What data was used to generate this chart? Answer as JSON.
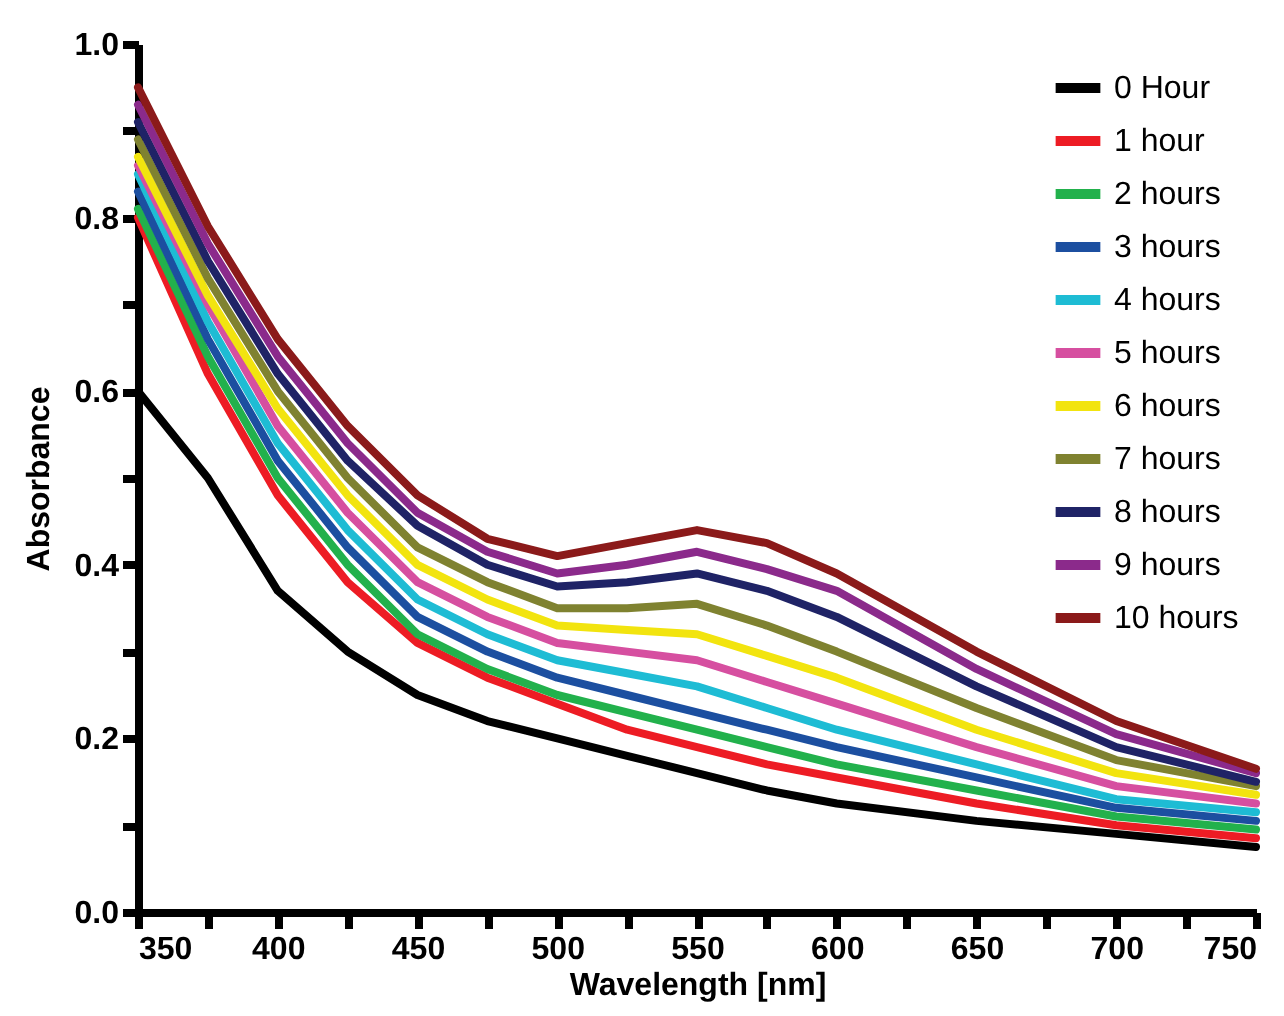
{
  "chart_data": {
    "type": "line",
    "xlabel": "Wavelength [nm]",
    "ylabel": "Absorbance",
    "x": [
      350,
      375,
      400,
      425,
      450,
      475,
      500,
      525,
      550,
      575,
      600,
      650,
      700,
      750
    ],
    "xlim": [
      350,
      750
    ],
    "xticks": [
      350,
      {
        "value": 375,
        "label": null
      },
      400,
      {
        "value": 425,
        "label": null
      },
      450,
      {
        "value": 475,
        "label": null
      },
      500,
      {
        "value": 525,
        "label": null
      },
      550,
      {
        "value": 575,
        "label": null
      },
      600,
      {
        "value": 625,
        "label": null
      },
      650,
      {
        "value": 675,
        "label": null
      },
      700,
      {
        "value": 725,
        "label": null
      },
      750
    ],
    "ylim": [
      0,
      1
    ],
    "yticks": [
      {
        "value": 0,
        "label": "0.0"
      },
      {
        "value": 0.1,
        "label": null
      },
      0.2,
      {
        "value": 0.3,
        "label": null
      },
      0.4,
      {
        "value": 0.5,
        "label": null
      },
      0.6,
      {
        "value": 0.7,
        "label": null
      },
      0.8,
      {
        "value": 0.9,
        "label": null
      },
      {
        "value": 1,
        "label": "1.0"
      }
    ],
    "grid": false,
    "legend": "top right",
    "marker": "none",
    "line_style": "solid",
    "series": [
      {
        "name": "0 Hour",
        "color": "#000000",
        "values": [
          0.6,
          0.5,
          0.37,
          0.3,
          0.25,
          0.22,
          0.2,
          0.18,
          0.16,
          0.14,
          0.125,
          0.105,
          0.09,
          0.075
        ]
      },
      {
        "name": "1 hour",
        "color": "#ed1c24",
        "values": [
          0.8,
          0.62,
          0.48,
          0.38,
          0.31,
          0.27,
          0.24,
          0.21,
          0.19,
          0.17,
          0.155,
          0.125,
          0.1,
          0.085
        ]
      },
      {
        "name": "2 hours",
        "color": "#22b14c",
        "values": [
          0.81,
          0.64,
          0.5,
          0.4,
          0.32,
          0.28,
          0.25,
          0.23,
          0.21,
          0.19,
          0.17,
          0.14,
          0.11,
          0.095
        ]
      },
      {
        "name": "3 hours",
        "color": "#1c4fa0",
        "values": [
          0.83,
          0.66,
          0.52,
          0.42,
          0.34,
          0.3,
          0.27,
          0.25,
          0.23,
          0.21,
          0.19,
          0.155,
          0.12,
          0.105
        ]
      },
      {
        "name": "4 hours",
        "color": "#1ebcd4",
        "values": [
          0.85,
          0.68,
          0.54,
          0.44,
          0.36,
          0.32,
          0.29,
          0.275,
          0.26,
          0.235,
          0.21,
          0.17,
          0.13,
          0.115
        ]
      },
      {
        "name": "5 hours",
        "color": "#d64fa0",
        "values": [
          0.86,
          0.7,
          0.56,
          0.46,
          0.38,
          0.34,
          0.31,
          0.3,
          0.29,
          0.265,
          0.24,
          0.19,
          0.145,
          0.125
        ]
      },
      {
        "name": "6 hours",
        "color": "#f2e40f",
        "values": [
          0.87,
          0.71,
          0.58,
          0.48,
          0.4,
          0.36,
          0.33,
          0.325,
          0.32,
          0.295,
          0.27,
          0.21,
          0.16,
          0.135
        ]
      },
      {
        "name": "7 hours",
        "color": "#7f8230",
        "values": [
          0.89,
          0.73,
          0.6,
          0.5,
          0.42,
          0.38,
          0.35,
          0.35,
          0.355,
          0.33,
          0.3,
          0.235,
          0.175,
          0.145
        ]
      },
      {
        "name": "8 hours",
        "color": "#1f2366",
        "values": [
          0.91,
          0.75,
          0.62,
          0.52,
          0.445,
          0.4,
          0.375,
          0.38,
          0.39,
          0.37,
          0.34,
          0.26,
          0.19,
          0.15
        ]
      },
      {
        "name": "9 hours",
        "color": "#8b2a8b",
        "values": [
          0.93,
          0.77,
          0.64,
          0.54,
          0.46,
          0.415,
          0.39,
          0.4,
          0.415,
          0.395,
          0.37,
          0.28,
          0.205,
          0.16
        ]
      },
      {
        "name": "10 hours",
        "color": "#8b1a1a",
        "values": [
          0.95,
          0.79,
          0.66,
          0.56,
          0.48,
          0.43,
          0.41,
          0.425,
          0.44,
          0.425,
          0.39,
          0.3,
          0.22,
          0.165
        ]
      }
    ]
  }
}
